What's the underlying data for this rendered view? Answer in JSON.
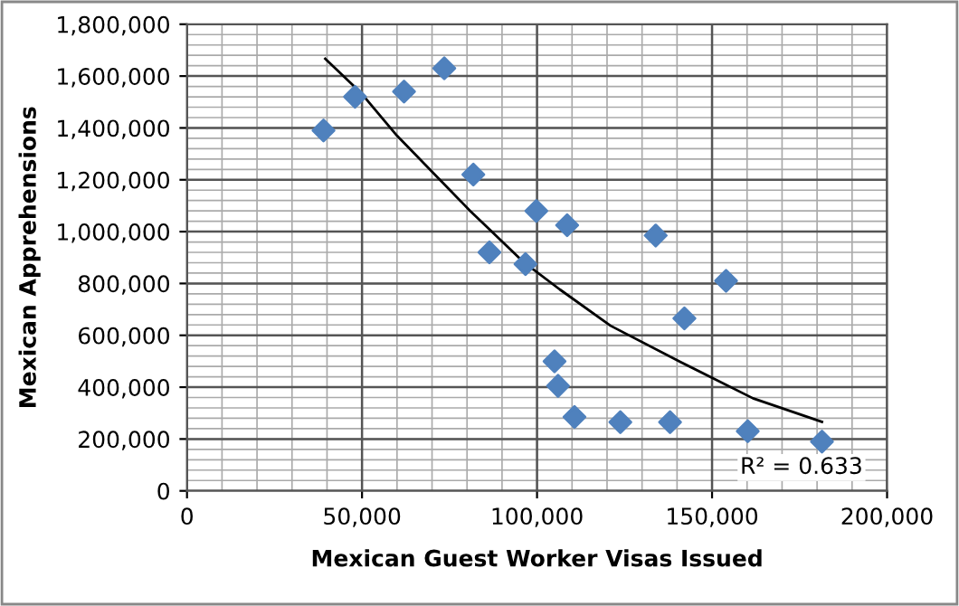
{
  "chart_data": {
    "type": "scatter",
    "xlabel": "Mexican Guest Worker Visas Issued",
    "ylabel": "Mexican Apprehensions",
    "series": [
      {
        "color": "#4f81bd",
        "marker": "diamond",
        "x": [
          39000,
          48000,
          62000,
          73500,
          81800,
          99800,
          108600,
          86400,
          96700,
          133900,
          154000,
          142100,
          105000,
          106000,
          110700,
          123800,
          138000,
          160200,
          181400
        ],
        "values": [
          1390000,
          1520000,
          1540000,
          1630000,
          1220000,
          1080000,
          1025000,
          920000,
          875000,
          985000,
          810000,
          665000,
          500000,
          405000,
          285000,
          265000,
          265000,
          230000,
          190000
        ]
      },
      {
        "type": "line",
        "color": "#000000",
        "marker": "none",
        "line_style": "solid",
        "x": [
          39500,
          49800,
          60000,
          80900,
          96200,
          106500,
          121000,
          141000,
          161700,
          181400
        ],
        "values": [
          1667000,
          1534000,
          1370000,
          1080000,
          882000,
          777000,
          637000,
          497000,
          357000,
          266000
        ]
      }
    ],
    "xlim": [
      0,
      200000
    ],
    "ylim": [
      0,
      1800000
    ],
    "xticks": [
      {
        "value": 0,
        "label": "0"
      },
      {
        "value": 50000,
        "label": "50,000"
      },
      {
        "value": 100000,
        "label": "100,000"
      },
      {
        "value": 150000,
        "label": "150,000"
      },
      {
        "value": 200000,
        "label": "200,000"
      }
    ],
    "yticks": [
      {
        "value": 0,
        "label": "0"
      },
      {
        "value": 200000,
        "label": "200,000"
      },
      {
        "value": 400000,
        "label": "400,000"
      },
      {
        "value": 600000,
        "label": "600,000"
      },
      {
        "value": 800000,
        "label": "800,000"
      },
      {
        "value": 1000000,
        "label": "1,000,000"
      },
      {
        "value": 1200000,
        "label": "1,200,000"
      },
      {
        "value": 1400000,
        "label": "1,400,000"
      },
      {
        "value": 1600000,
        "label": "1,600,000"
      },
      {
        "value": 1800000,
        "label": "1,800,000"
      }
    ],
    "grid": true,
    "legend": false,
    "annotations": [
      "R² = 0.633"
    ]
  }
}
